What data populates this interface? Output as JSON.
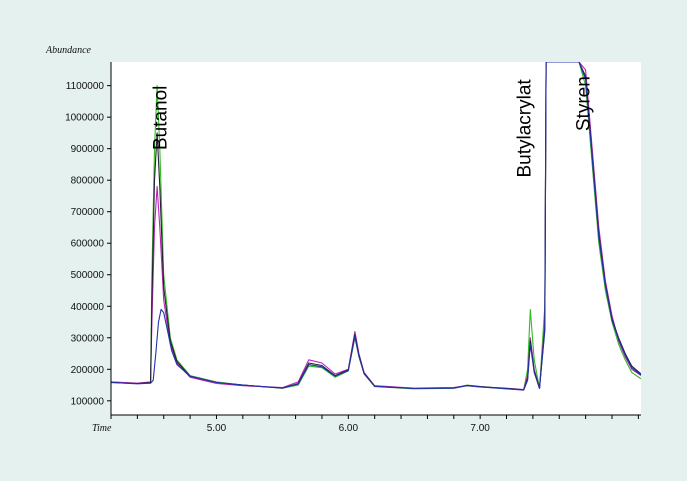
{
  "chart_data": {
    "type": "line",
    "ylabel": "Abundance",
    "xlabel": "Time",
    "xlim": [
      4.2,
      8.22
    ],
    "ylim": [
      55000,
      1175000
    ],
    "x_ticks": [
      5.0,
      6.0,
      7.0
    ],
    "x_tick_labels": [
      "5.00",
      "6.00",
      "7.00"
    ],
    "y_ticks": [
      100000,
      200000,
      300000,
      400000,
      500000,
      600000,
      700000,
      800000,
      900000,
      1000000,
      1100000
    ],
    "y_tick_labels": [
      "100000",
      "200000",
      "300000",
      "400000",
      "500000",
      "600000",
      "700000",
      "800000",
      "900000",
      "1000000",
      "1100000"
    ],
    "grid": false,
    "annotations": [
      {
        "text": "Butanol",
        "x": 4.62,
        "y": 1100000
      },
      {
        "text": "Butylacrylat",
        "x": 7.38,
        "y": 1120000
      },
      {
        "text": "Styren",
        "x": 7.83,
        "y": 1130000
      }
    ],
    "series": [
      {
        "color": "#33bb22",
        "x": [
          4.2,
          4.4,
          4.5,
          4.51,
          4.53,
          4.55,
          4.57,
          4.6,
          4.65,
          4.7,
          4.8,
          5.0,
          5.2,
          5.5,
          5.62,
          5.7,
          5.8,
          5.9,
          6.0,
          6.05,
          6.08,
          6.12,
          6.2,
          6.5,
          6.8,
          6.9,
          7.0,
          7.2,
          7.33,
          7.36,
          7.38,
          7.41,
          7.45,
          7.49,
          7.5,
          7.52,
          7.58,
          7.62,
          7.65,
          7.7,
          7.75,
          7.8,
          7.85,
          7.9,
          7.95,
          8.0,
          8.05,
          8.1,
          8.15,
          8.22
        ],
        "y": [
          160000,
          155000,
          158000,
          500000,
          900000,
          1100000,
          900000,
          500000,
          300000,
          230000,
          180000,
          160000,
          150000,
          140000,
          150000,
          210000,
          205000,
          175000,
          195000,
          300000,
          240000,
          185000,
          145000,
          138000,
          140000,
          150000,
          145000,
          138000,
          135000,
          200000,
          390000,
          230000,
          140000,
          400000,
          1175000,
          1175000,
          1175000,
          1175000,
          1175000,
          1175000,
          1175000,
          1100000,
          850000,
          600000,
          450000,
          350000,
          280000,
          230000,
          190000,
          170000
        ]
      },
      {
        "color": "#bb22bb",
        "x": [
          4.2,
          4.4,
          4.5,
          4.51,
          4.53,
          4.55,
          4.57,
          4.6,
          4.65,
          4.7,
          4.8,
          5.0,
          5.2,
          5.5,
          5.62,
          5.7,
          5.8,
          5.9,
          6.0,
          6.05,
          6.08,
          6.12,
          6.2,
          6.5,
          6.8,
          6.9,
          7.0,
          7.2,
          7.33,
          7.36,
          7.38,
          7.41,
          7.45,
          7.49,
          7.5,
          7.52,
          7.58,
          7.62,
          7.65,
          7.7,
          7.75,
          7.8,
          7.85,
          7.9,
          7.95,
          8.0,
          8.05,
          8.1,
          8.15,
          8.22
        ],
        "y": [
          160000,
          156000,
          160000,
          350000,
          650000,
          780000,
          650000,
          420000,
          280000,
          220000,
          175000,
          155000,
          148000,
          142000,
          160000,
          230000,
          220000,
          185000,
          200000,
          320000,
          250000,
          190000,
          148000,
          140000,
          142000,
          148000,
          144000,
          140000,
          136000,
          180000,
          300000,
          200000,
          140000,
          350000,
          1175000,
          1175000,
          1175000,
          1175000,
          1175000,
          1175000,
          1175000,
          1150000,
          900000,
          650000,
          480000,
          370000,
          290000,
          240000,
          200000,
          180000
        ]
      },
      {
        "color": "#222233",
        "x": [
          4.2,
          4.4,
          4.5,
          4.51,
          4.53,
          4.55,
          4.57,
          4.6,
          4.65,
          4.7,
          4.8,
          5.0,
          5.2,
          5.5,
          5.62,
          5.7,
          5.8,
          5.9,
          6.0,
          6.05,
          6.08,
          6.12,
          6.2,
          6.5,
          6.8,
          6.9,
          7.0,
          7.2,
          7.33,
          7.36,
          7.38,
          7.41,
          7.45,
          7.49,
          7.5,
          7.52,
          7.58,
          7.62,
          7.65,
          7.7,
          7.75,
          7.8,
          7.85,
          7.9,
          7.95,
          8.0,
          8.05,
          8.1,
          8.15,
          8.22
        ],
        "y": [
          158000,
          155000,
          158000,
          420000,
          800000,
          950000,
          780000,
          460000,
          290000,
          225000,
          178000,
          158000,
          150000,
          140000,
          155000,
          220000,
          212000,
          180000,
          198000,
          310000,
          245000,
          188000,
          146000,
          139000,
          141000,
          149000,
          145000,
          139000,
          135000,
          170000,
          290000,
          195000,
          140000,
          330000,
          1175000,
          1175000,
          1175000,
          1175000,
          1175000,
          1175000,
          1175000,
          1130000,
          880000,
          630000,
          470000,
          360000,
          300000,
          250000,
          210000,
          185000
        ]
      },
      {
        "color": "#2233aa",
        "x": [
          4.2,
          4.4,
          4.5,
          4.52,
          4.54,
          4.56,
          4.58,
          4.6,
          4.63,
          4.66,
          4.7,
          4.8,
          5.0,
          5.2,
          5.5,
          5.62,
          5.7,
          5.8,
          5.9,
          6.0,
          6.05,
          6.08,
          6.12,
          6.2,
          6.5,
          6.8,
          6.9,
          7.0,
          7.2,
          7.33,
          7.36,
          7.38,
          7.41,
          7.45,
          7.49,
          7.5,
          7.52,
          7.58,
          7.62,
          7.65,
          7.7,
          7.75,
          7.8,
          7.85,
          7.9,
          7.95,
          8.0,
          8.05,
          8.1,
          8.15,
          8.22
        ],
        "y": [
          158000,
          154000,
          156000,
          165000,
          250000,
          350000,
          390000,
          380000,
          320000,
          260000,
          215000,
          178000,
          158000,
          150000,
          141000,
          153000,
          215000,
          208000,
          178000,
          196000,
          305000,
          242000,
          186000,
          146000,
          139000,
          140000,
          148000,
          144000,
          138000,
          134000,
          165000,
          280000,
          190000,
          139000,
          320000,
          1175000,
          1175000,
          1175000,
          1175000,
          1175000,
          1175000,
          1175000,
          1120000,
          870000,
          620000,
          465000,
          355000,
          295000,
          245000,
          205000,
          182000
        ]
      }
    ]
  }
}
